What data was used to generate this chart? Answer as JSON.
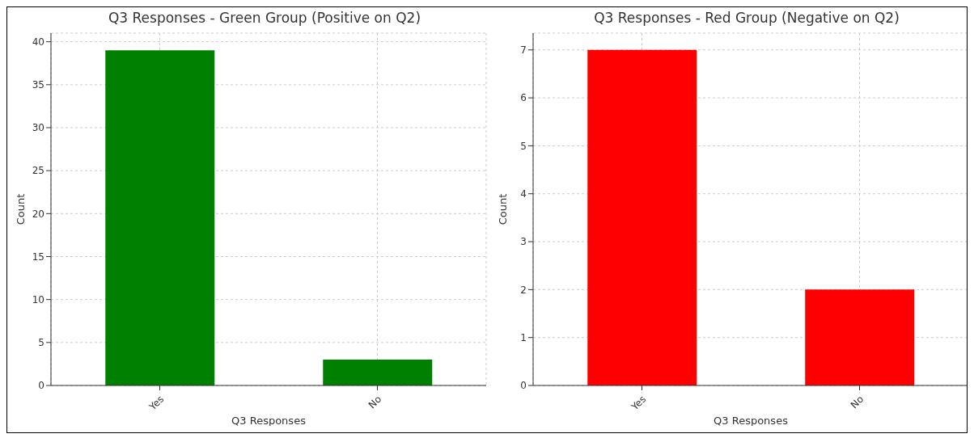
{
  "chart_data": [
    {
      "type": "bar",
      "title": "Q3 Responses - Green Group (Positive on Q2)",
      "xlabel": "Q3 Responses",
      "ylabel": "Count",
      "categories": [
        "Yes",
        "No"
      ],
      "values": [
        39,
        3
      ],
      "color": "#008000",
      "ylim": [
        0,
        41
      ],
      "yticks": [
        0,
        5,
        10,
        15,
        20,
        25,
        30,
        35,
        40
      ],
      "grid": true
    },
    {
      "type": "bar",
      "title": "Q3 Responses - Red Group (Negative on Q2)",
      "xlabel": "Q3 Responses",
      "ylabel": "Count",
      "categories": [
        "Yes",
        "No"
      ],
      "values": [
        7,
        2
      ],
      "color": "#ff0000",
      "ylim": [
        0,
        7.35
      ],
      "yticks": [
        0,
        1,
        2,
        3,
        4,
        5,
        6,
        7
      ],
      "grid": true
    }
  ]
}
